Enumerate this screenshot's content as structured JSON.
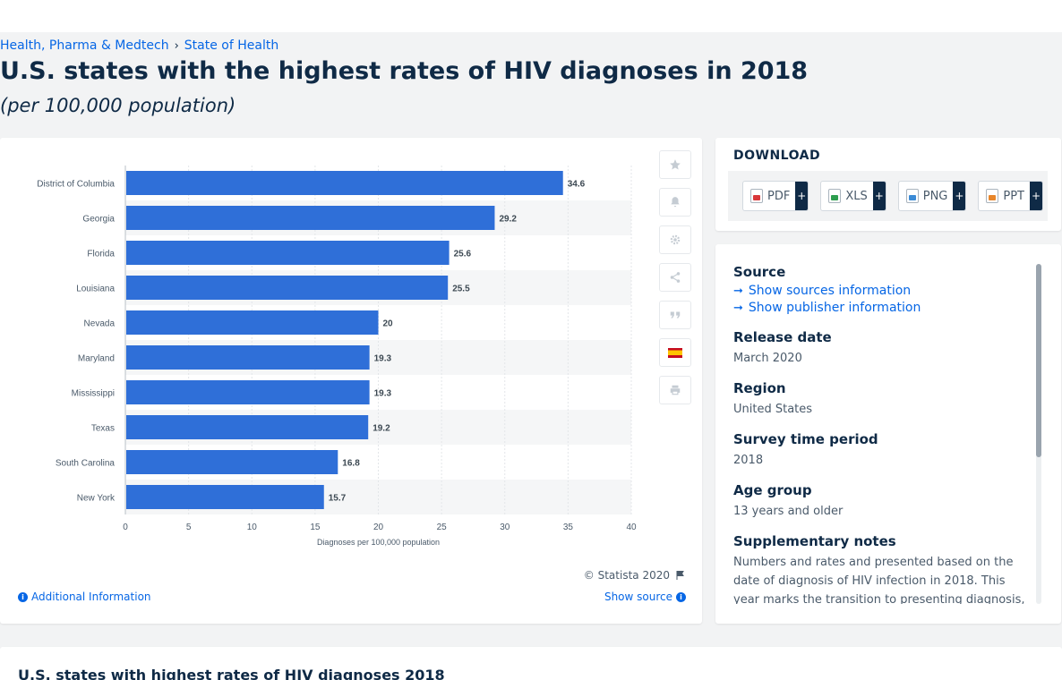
{
  "breadcrumb": {
    "items": [
      "Health, Pharma & Medtech",
      "State of Health"
    ],
    "separator": "›"
  },
  "page": {
    "title": "U.S. states with the highest rates of HIV diagnoses in 2018",
    "subtitle": "(per 100,000 population)"
  },
  "chart_footer": {
    "copyright": "© Statista 2020",
    "additional_info": "Additional Information",
    "show_source": "Show source"
  },
  "toolbar": {
    "icons": [
      "star-icon",
      "bell-icon",
      "gear-icon",
      "share-icon",
      "quote-icon",
      "spanish-flag-icon",
      "print-icon"
    ]
  },
  "download": {
    "title": "DOWNLOAD",
    "buttons": [
      {
        "label": "PDF",
        "icon": "pdf-file-icon"
      },
      {
        "label": "XLS",
        "icon": "xls-file-icon"
      },
      {
        "label": "PNG",
        "icon": "png-file-icon"
      },
      {
        "label": "PPT",
        "icon": "ppt-file-icon"
      }
    ],
    "plus": "+"
  },
  "meta": {
    "source_heading": "Source",
    "show_sources": "Show sources information",
    "show_publisher": "Show publisher information",
    "release_heading": "Release date",
    "release_value": "March 2020",
    "region_heading": "Region",
    "region_value": "United States",
    "survey_heading": "Survey time period",
    "survey_value": "2018",
    "age_heading": "Age group",
    "age_value": "13 years and older",
    "notes_heading": "Supplementary notes",
    "notes_value": "Numbers and rates and presented based on the date of diagnosis of HIV infection in 2018. This year marks the transition to presenting diagnosis, death,"
  },
  "bottom": {
    "title": "U.S. states with highest rates of HIV diagnoses 2018"
  },
  "colors": {
    "bar": "#2f6fd8",
    "accent": "#0666e5",
    "text": "#0f2a46"
  },
  "chart_data": {
    "type": "bar",
    "orientation": "horizontal",
    "categories": [
      "District of Columbia",
      "Georgia",
      "Florida",
      "Louisiana",
      "Nevada",
      "Maryland",
      "Mississippi",
      "Texas",
      "South Carolina",
      "New York"
    ],
    "values": [
      34.6,
      29.2,
      25.6,
      25.5,
      20,
      19.3,
      19.3,
      19.2,
      16.8,
      15.7
    ],
    "data_labels": [
      "34.6",
      "29.2",
      "25.6",
      "25.5",
      "20",
      "19.3",
      "19.3",
      "19.2",
      "16.8",
      "15.7"
    ],
    "xlabel": "Diagnoses per 100,000 population",
    "xlim": [
      0,
      40
    ],
    "xticks": [
      0,
      5,
      10,
      15,
      20,
      25,
      30,
      35,
      40
    ],
    "grid": true
  }
}
